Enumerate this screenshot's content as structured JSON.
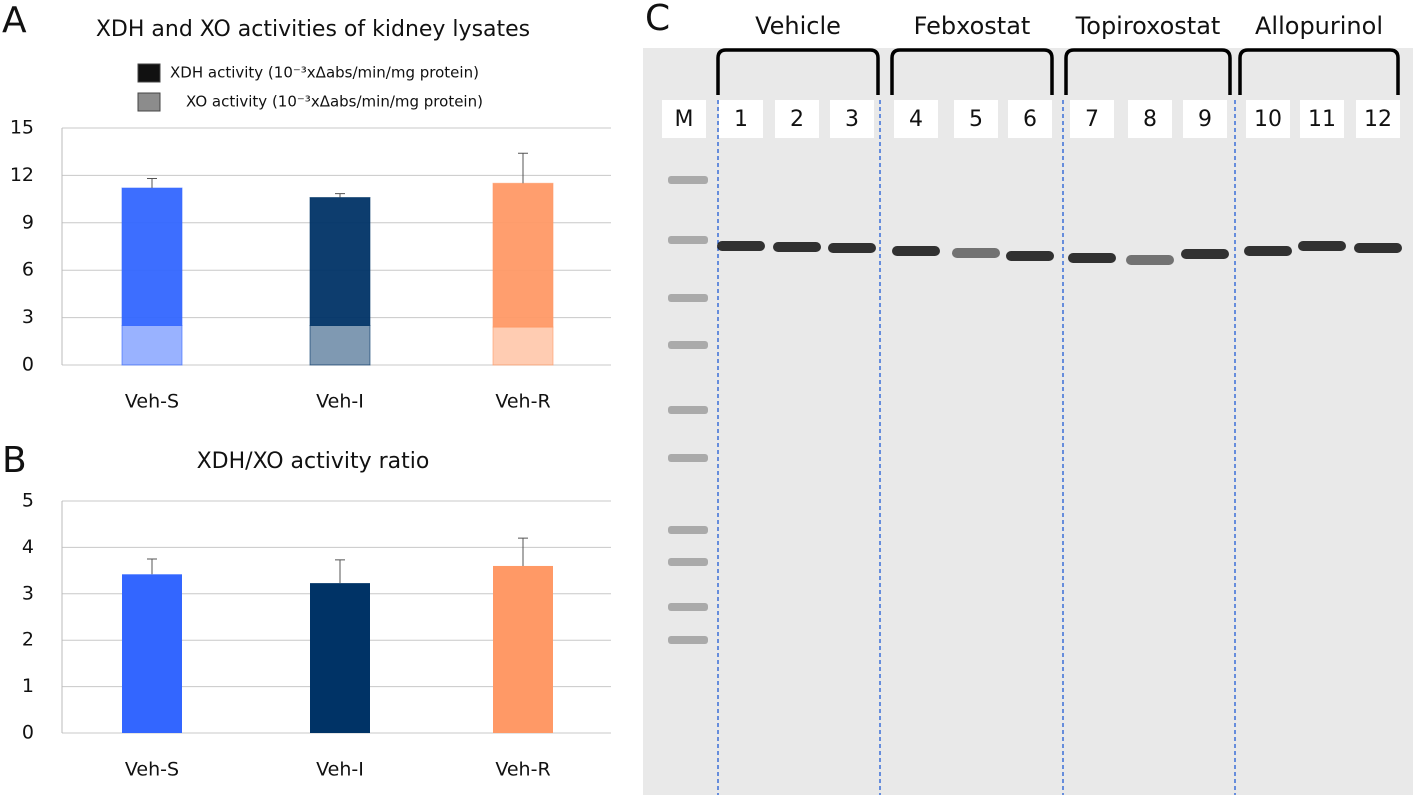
{
  "chart_data": [
    {
      "type": "stacked-bar",
      "panel": "A",
      "title": "XDH and XO activities of kidney lysates",
      "categories": [
        "Veh-S",
        "Veh-I",
        "Veh-R"
      ],
      "colors": [
        "#3366ff",
        "#003366",
        "#ff9966"
      ],
      "series": [
        {
          "name": "XO activity (10⁻³xΔabs/min/mg protein)",
          "color": "#8c8c8c",
          "values": [
            2.5,
            2.5,
            2.4
          ]
        },
        {
          "name": "XDH activity (10⁻³xΔabs/min/mg protein)",
          "color": "#111111",
          "values": [
            8.7,
            8.1,
            9.1
          ],
          "errors": [
            0.6,
            0.25,
            1.9
          ]
        }
      ],
      "ylim": [
        0,
        15
      ],
      "yticks": [
        0,
        3,
        6,
        9,
        12,
        15
      ],
      "grid": true
    },
    {
      "type": "bar",
      "panel": "B",
      "title": "XDH/XO activity ratio",
      "categories": [
        "Veh-S",
        "Veh-I",
        "Veh-R"
      ],
      "colors": [
        "#3366ff",
        "#003366",
        "#ff9966"
      ],
      "values": [
        3.42,
        3.23,
        3.6
      ],
      "errors": [
        0.33,
        0.5,
        0.6
      ],
      "ylim": [
        0,
        5
      ],
      "yticks": [
        0,
        1,
        2,
        3,
        4,
        5
      ],
      "grid": true
    }
  ],
  "gel": {
    "panel": "C",
    "groups": [
      "Vehicle",
      "Febxostat",
      "Topiroxostat",
      "Allopurinol"
    ],
    "lanes": [
      "M",
      "1",
      "2",
      "3",
      "4",
      "5",
      "6",
      "7",
      "8",
      "9",
      "10",
      "11",
      "12"
    ]
  }
}
